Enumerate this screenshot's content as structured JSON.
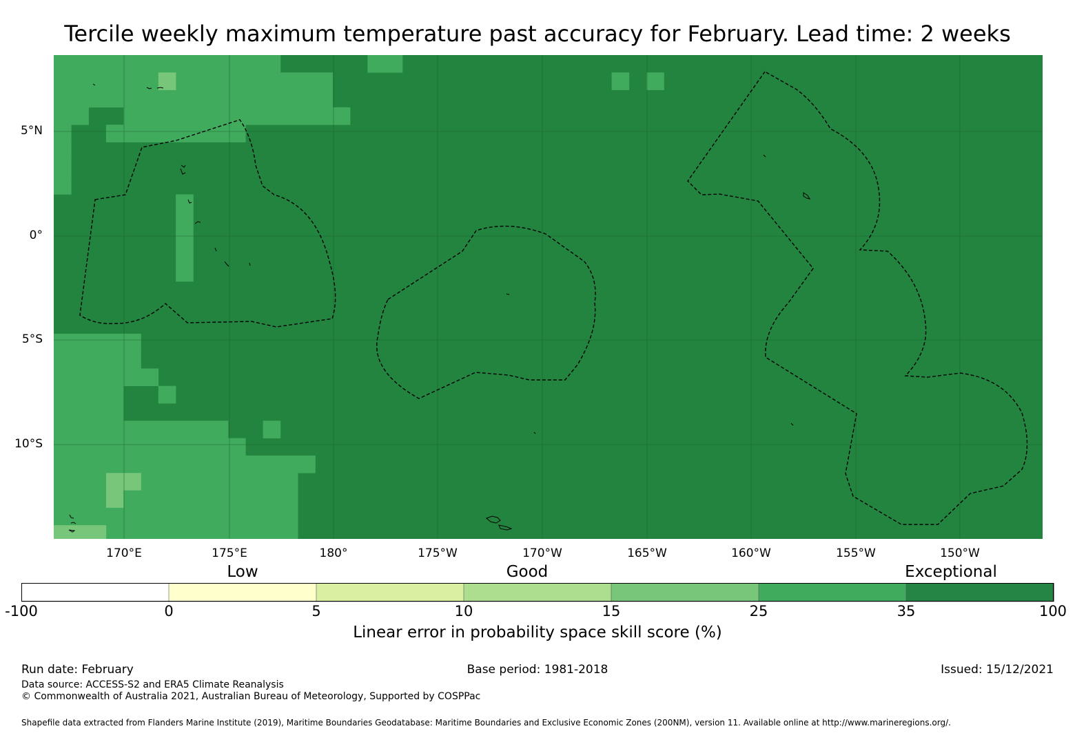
{
  "title": "Tercile weekly maximum temperature past accuracy for February. Lead time: 2 weeks",
  "map": {
    "lat_labels": [
      "5°N",
      "0°",
      "5°S",
      "10°S"
    ],
    "lon_labels": [
      "170°E",
      "175°E",
      "180°",
      "175°W",
      "170°W",
      "165°W",
      "160°W",
      "155°W",
      "150°W"
    ],
    "base_color": "#23843f",
    "border_color": "#000000"
  },
  "colorbar": {
    "categories": [
      "Low",
      "Good",
      "Exceptional"
    ],
    "ticks": [
      "-100",
      "0",
      "5",
      "10",
      "15",
      "25",
      "35",
      "100"
    ],
    "colors": [
      "#ffffff",
      "#ffffcc",
      "#d9f0a3",
      "#addd8e",
      "#78c679",
      "#41ab5d",
      "#238443"
    ],
    "title": "Linear error in probability space skill score (%)"
  },
  "footer": {
    "run_date": "Run date: February",
    "base_period": "Base period: 1981-2018",
    "issued": "Issued: 15/12/2021",
    "data_source": "Data source: ACCESS-S2 and ERA5 Climate Reanalysis",
    "copyright": "© Commonwealth of Australia 2021, Australian Bureau of Meteorology, Supported by COSPPac",
    "shapefile": "Shapefile data extracted from Flanders Marine Institute (2019), Maritime Boundaries Geodatabase: Maritime Boundaries and Exclusive Economic Zones (200NM), version 11. Available online at http://www.marineregions.org/."
  }
}
